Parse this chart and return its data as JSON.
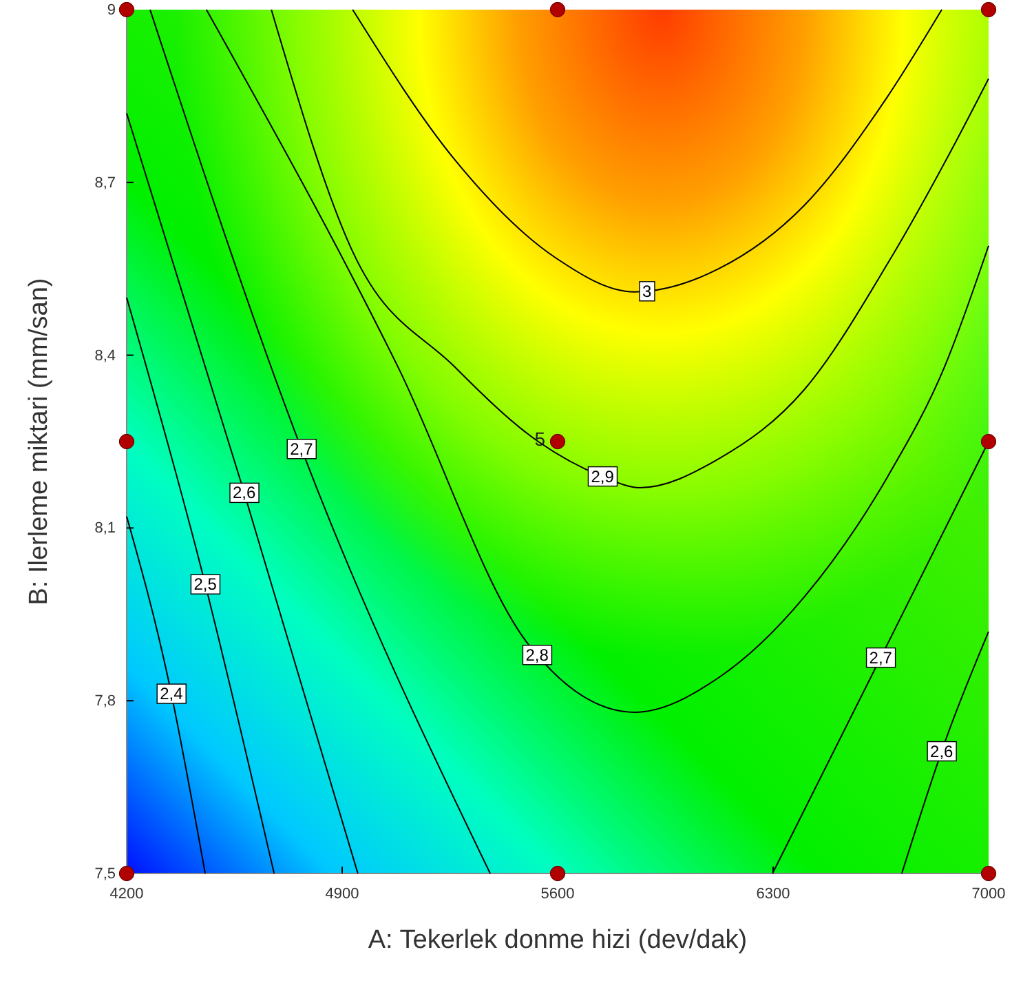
{
  "chart_data": {
    "type": "line",
    "xlabel": "A: Tekerlek donme hizi (dev/dak)",
    "ylabel": "B: Ilerleme miktari (mm/san)",
    "xlim": [
      4200,
      7000
    ],
    "xticks": [
      4200,
      4900,
      5600,
      6300,
      7000
    ],
    "ylim": [
      7.5,
      9
    ],
    "yticks": [
      {
        "value": 7.5,
        "label": "7,5"
      },
      {
        "value": 7.8,
        "label": "7,8"
      },
      {
        "value": 8.1,
        "label": "8,1"
      },
      {
        "value": 8.4,
        "label": "8,4"
      },
      {
        "value": 8.7,
        "label": "8,7"
      },
      9
    ],
    "grid": false,
    "series": [
      {
        "name": "2,4",
        "color": "#000000",
        "x": [
          4200,
          4334,
          4455
        ],
        "values": [
          8.12,
          7.84,
          7.5
        ]
      },
      {
        "name": "2,5",
        "color": "#000000",
        "x": [
          4200,
          4442,
          4679
        ],
        "values": [
          8.5,
          8.03,
          7.5
        ]
      },
      {
        "name": "2,6",
        "color": "#000000",
        "x": [
          4200,
          4571,
          4951
        ],
        "values": [
          8.82,
          8.18,
          7.5
        ]
      },
      {
        "name": "2,7",
        "color": "#000000",
        "x": [
          4276,
          4773,
          5381
        ],
        "values": [
          9.0,
          8.23,
          7.5
        ]
      },
      {
        "name": "2,8",
        "color": "#000000",
        "x": [
          4459,
          5081,
          5502,
          5850,
          6123,
          6401,
          6673,
          6857,
          7000
        ],
        "values": [
          9.0,
          8.38,
          7.9,
          7.78,
          7.84,
          7.98,
          8.19,
          8.38,
          8.59
        ]
      },
      {
        "name": "2,9",
        "color": "#000000",
        "x": [
          4670,
          4934,
          5265,
          5537,
          5743,
          5868,
          6123,
          6401,
          6673,
          6893,
          7000
        ],
        "values": [
          9.0,
          8.58,
          8.38,
          8.25,
          8.19,
          8.17,
          8.22,
          8.34,
          8.56,
          8.77,
          8.88
        ]
      },
      {
        "name": "3",
        "color": "#000000",
        "x": [
          4934,
          5265,
          5591,
          5850,
          6123,
          6401,
          6673,
          6848
        ],
        "values": [
          9.0,
          8.74,
          8.57,
          8.51,
          8.55,
          8.66,
          8.85,
          9.0
        ]
      },
      {
        "name": "2,7",
        "color": "#000000",
        "x": [
          6298,
          6673,
          7000
        ],
        "values": [
          7.5,
          7.9,
          8.25
        ]
      },
      {
        "name": "2,6",
        "color": "#000000",
        "x": [
          6718,
          6866,
          7000
        ],
        "values": [
          7.5,
          7.74,
          7.92
        ]
      },
      {
        "color": "#b00000",
        "type": "scatter",
        "marker": "circle",
        "x": [
          4200,
          4200,
          4200,
          5600,
          5600,
          5600,
          7000,
          7000,
          7000
        ],
        "values": [
          7.5,
          8.25,
          9,
          7.5,
          8.25,
          9,
          7.5,
          8.25,
          9
        ]
      }
    ],
    "annotations": [
      {
        "text": "5",
        "x": 5600,
        "y": 8.25
      }
    ]
  }
}
